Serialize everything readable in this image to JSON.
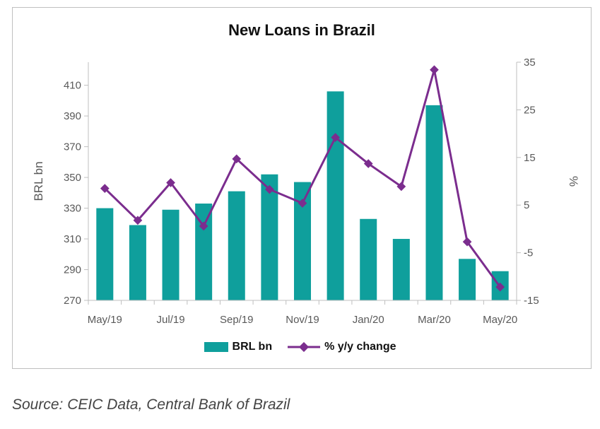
{
  "chart_data": {
    "type": "bar+line",
    "title": "New Loans in Brazil",
    "x_labels": [
      "May/19",
      "Jul/19",
      "Sep/19",
      "Nov/19",
      "Jan/20",
      "Mar/20",
      "May/20"
    ],
    "categories": [
      "May/19",
      "Jun/19",
      "Jul/19",
      "Aug/19",
      "Sep/19",
      "Oct/19",
      "Nov/19",
      "Dec/19",
      "Jan/20",
      "Feb/20",
      "Mar/20",
      "Apr/20",
      "May/20"
    ],
    "series": [
      {
        "name": "BRL bn",
        "type": "bar",
        "axis": "left",
        "color": "#0f9f9c",
        "values": [
          330,
          319,
          329,
          333,
          341,
          352,
          347,
          406,
          323,
          310,
          397,
          297,
          289
        ]
      },
      {
        "name": "% y/y change",
        "type": "line",
        "axis": "right",
        "color": "#7b2d8e",
        "values": [
          8.5,
          1.8,
          9.7,
          0.6,
          14.7,
          8.3,
          5.4,
          19.2,
          13.7,
          8.9,
          33.4,
          -2.7,
          -12.2
        ]
      }
    ],
    "ylabel_left": "BRL bn",
    "ylim_left": [
      270,
      425
    ],
    "yticks_left": [
      270,
      290,
      310,
      330,
      350,
      370,
      390,
      410
    ],
    "ylabel_right": "%",
    "ylim_right": [
      -15,
      35
    ],
    "yticks_right": [
      -15,
      -5,
      5,
      15,
      25,
      35
    ],
    "legend_position": "bottom",
    "grid": false
  },
  "source": "Source: CEIC Data, Central Bank of Brazil"
}
